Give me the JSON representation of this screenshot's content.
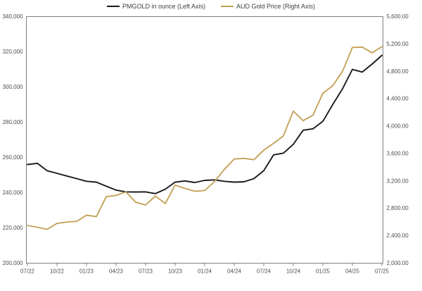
{
  "chart_data": {
    "type": "line",
    "title": "",
    "legend_position": "top",
    "grid": false,
    "axis_color": "#7f7f7f",
    "tick_text_color": "#4d4d4d",
    "months": [
      "07/22",
      "08/22",
      "09/22",
      "10/22",
      "11/22",
      "12/22",
      "01/23",
      "02/23",
      "03/23",
      "04/23",
      "05/23",
      "06/23",
      "07/23",
      "08/23",
      "09/23",
      "10/23",
      "11/23",
      "12/23",
      "01/24",
      "02/24",
      "03/24",
      "04/24",
      "05/24",
      "06/24",
      "07/24",
      "08/24",
      "09/24",
      "10/24",
      "11/24",
      "12/24",
      "01/25",
      "02/25",
      "03/25",
      "04/25",
      "05/25",
      "06/25",
      "07/25"
    ],
    "x_tick_labels": [
      "07/22",
      "10/22",
      "01/23",
      "04/23",
      "07/23",
      "10/23",
      "01/24",
      "04/24",
      "07/24",
      "10/24",
      "01/25",
      "04/25",
      "07/25"
    ],
    "x_tick_every": 3,
    "left_axis": {
      "min": 200000,
      "max": 340000,
      "step": 20000,
      "tick_labels": [
        "340,000",
        "320,000",
        "300,000",
        "280,000",
        "260,000",
        "240,000",
        "220,000",
        "200,000"
      ]
    },
    "right_axis": {
      "min": 2000,
      "max": 5600,
      "step": 400,
      "tick_labels": [
        "5,600.00",
        "5,200.00",
        "4,800.00",
        "4,400.00",
        "4,000.00",
        "3,600.00",
        "3,200.00",
        "2,800.00",
        "2,400.00",
        "2,000.00"
      ]
    },
    "series": [
      {
        "id": "pmgold",
        "name": "PMGOLD in ounce (Left Axis)",
        "axis": "left",
        "color": "#1a1a1a",
        "values": [
          256000,
          256700,
          252500,
          251000,
          249500,
          248000,
          246500,
          246000,
          243700,
          241500,
          240500,
          240400,
          240500,
          239500,
          242000,
          246000,
          246700,
          245800,
          247000,
          247300,
          246500,
          246000,
          246200,
          248000,
          252500,
          261500,
          262500,
          267500,
          275500,
          276300,
          280500,
          290000,
          299000,
          310000,
          308500,
          313000,
          318000
        ]
      },
      {
        "id": "aud-gold-price",
        "name": "AUD Gold Price (Right Axis)",
        "axis": "right",
        "color": "#c5a25a",
        "values": [
          2550,
          2525,
          2495,
          2580,
          2600,
          2610,
          2700,
          2680,
          2970,
          2990,
          3040,
          2890,
          2850,
          2980,
          2870,
          3140,
          3090,
          3050,
          3060,
          3190,
          3370,
          3520,
          3530,
          3510,
          3650,
          3750,
          3860,
          4220,
          4080,
          4160,
          4480,
          4590,
          4800,
          5150,
          5155,
          5070,
          5160
        ]
      }
    ]
  }
}
